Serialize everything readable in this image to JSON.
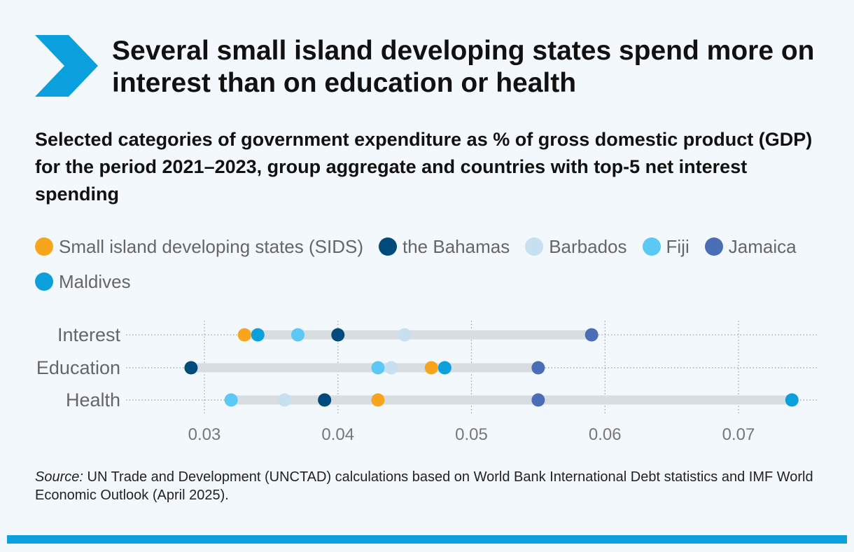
{
  "title": "Several small island developing states spend more on interest than on education or health",
  "subtitle": "Selected categories of government expenditure as % of gross domestic product (GDP) for the period 2021–2023, group aggregate and countries with top-5 net interest spending",
  "source_label": "Source:",
  "source_text": " UN Trade and Development (UNCTAD) calculations based on World Bank International Debt statistics and IMF World Economic Outlook (April 2025).",
  "colors": {
    "accent": "#0aa0dd",
    "background": "#f3f8fc"
  },
  "chart_data": {
    "type": "scatter",
    "subtype": "dot-plot",
    "categories": [
      "Interest",
      "Education",
      "Health"
    ],
    "xlim": [
      0.024,
      0.075
    ],
    "xticks": [
      0.03,
      0.04,
      0.05,
      0.06,
      0.07
    ],
    "xtick_labels": [
      "0.03",
      "0.04",
      "0.05",
      "0.06",
      "0.07"
    ],
    "grid": true,
    "legend_position": "top",
    "series": [
      {
        "name": "Small island developing states (SIDS)",
        "color": "#f7a51c",
        "values": [
          0.033,
          0.047,
          0.043
        ]
      },
      {
        "name": "the Bahamas",
        "color": "#004b7c",
        "values": [
          0.04,
          0.029,
          0.039
        ]
      },
      {
        "name": "Barbados",
        "color": "#c7e0ef",
        "values": [
          0.045,
          0.044,
          0.036
        ]
      },
      {
        "name": "Fiji",
        "color": "#5bc8f5",
        "values": [
          0.037,
          0.043,
          0.032
        ]
      },
      {
        "name": "Jamaica",
        "color": "#4a6db5",
        "values": [
          0.059,
          0.055,
          0.055
        ]
      },
      {
        "name": "Maldives",
        "color": "#0b9fdb",
        "values": [
          0.034,
          0.048,
          0.074
        ]
      }
    ]
  }
}
